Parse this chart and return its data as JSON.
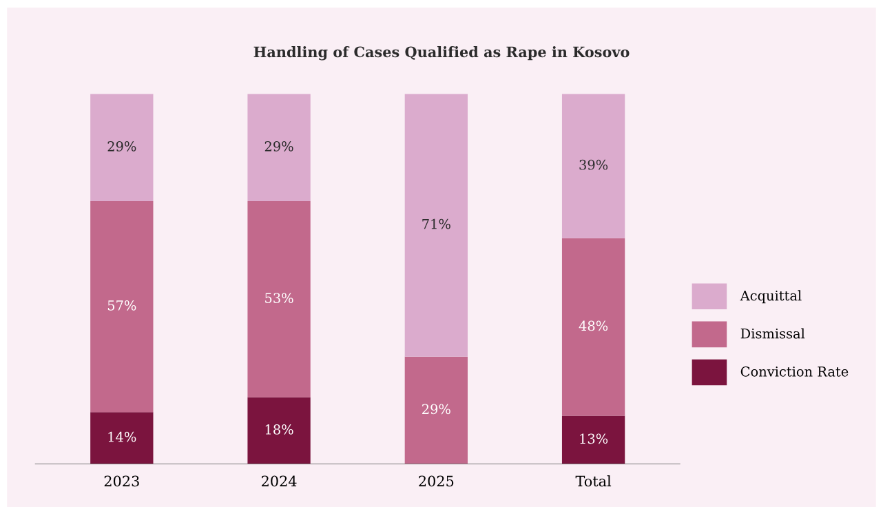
{
  "chart_data": {
    "type": "bar",
    "title": "Handling of Cases Qualified as Rape in Kosovo",
    "categories": [
      "2023",
      "2024",
      "2025",
      "Total"
    ],
    "stacked": true,
    "legend": "right",
    "grid": false,
    "series": [
      {
        "name": "Conviction Rate",
        "color": "#7b143e",
        "values": [
          14,
          18,
          null,
          13
        ],
        "value_labels": [
          "14%",
          "18%",
          null,
          "13%"
        ]
      },
      {
        "name": "Dismissal",
        "color": "#c2698c",
        "values": [
          57,
          53,
          29,
          48
        ],
        "value_labels": [
          "57%",
          "53%",
          "29%",
          "48%"
        ]
      },
      {
        "name": "Acquittal",
        "color": "#dbabcd",
        "values": [
          29,
          29,
          71,
          39
        ],
        "value_labels": [
          "29%",
          "29%",
          "71%",
          "39%"
        ]
      }
    ]
  }
}
